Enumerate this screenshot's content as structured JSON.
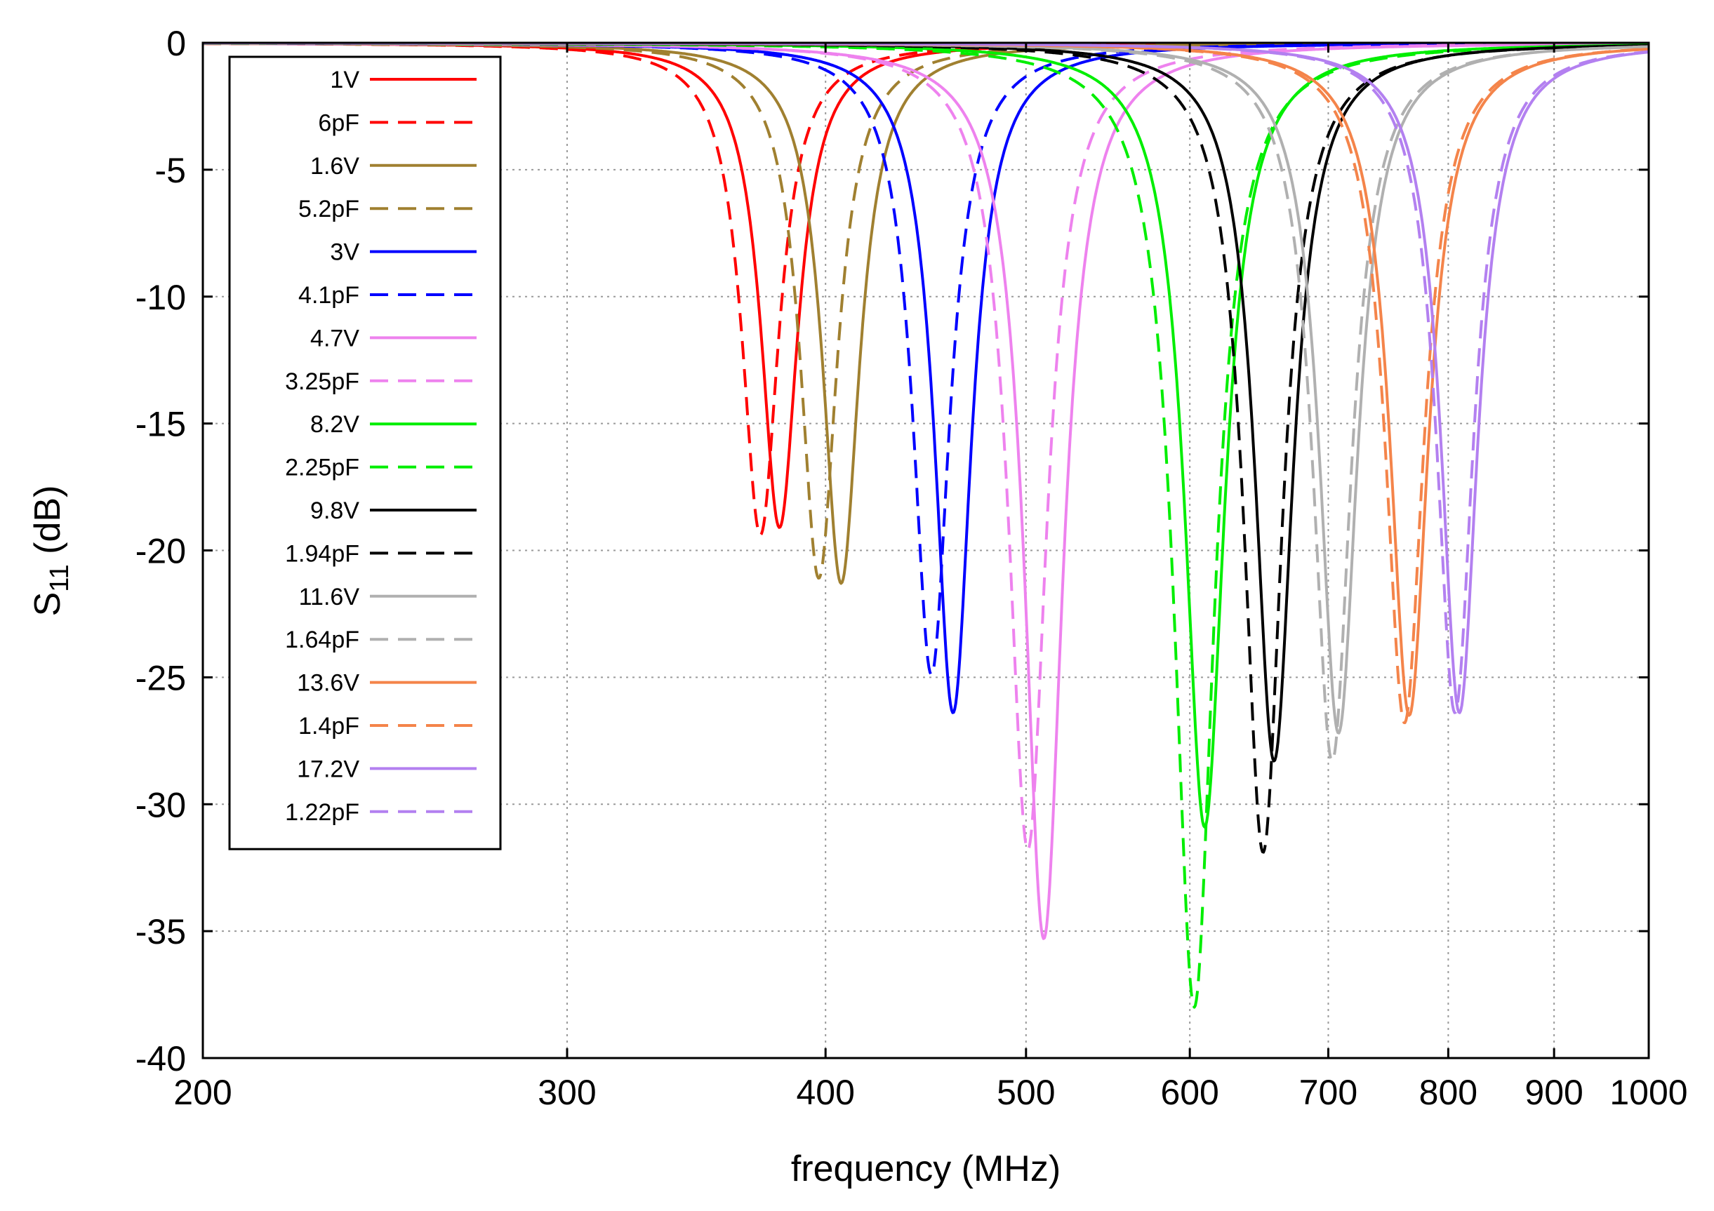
{
  "chart_data": {
    "type": "line",
    "title": "",
    "xlabel": "frequency  (MHz)",
    "ylabel_main": "S",
    "ylabel_sub": "11",
    "ylabel_rest": " (dB)",
    "x_scale": "log",
    "xlim": [
      200,
      1000
    ],
    "ylim": [
      -40,
      0
    ],
    "x_ticks": [
      200,
      300,
      400,
      500,
      600,
      700,
      800,
      900,
      1000
    ],
    "x_tick_labels": [
      "200",
      "300",
      "400",
      "500",
      "600",
      "700",
      "800",
      "900",
      "1000"
    ],
    "y_ticks": [
      0,
      -5,
      -10,
      -15,
      -20,
      -25,
      -30,
      -35,
      -40
    ],
    "y_tick_labels": [
      "0",
      "-5",
      "-10",
      "-15",
      "-20",
      "-25",
      "-30",
      "-35",
      "-40"
    ],
    "grid": true,
    "legend_position": "top-left",
    "series": [
      {
        "name": "1V",
        "style": "solid",
        "color": "#ff0000",
        "f0": 380,
        "min_db": -19.1,
        "width": 0.025
      },
      {
        "name": "6pF",
        "style": "dashed",
        "color": "#ff0000",
        "f0": 372,
        "min_db": -19.4,
        "width": 0.025
      },
      {
        "name": "1.6V",
        "style": "solid",
        "color": "#a08030",
        "f0": 407,
        "min_db": -21.3,
        "width": 0.025
      },
      {
        "name": "5.2pF",
        "style": "dashed",
        "color": "#a08030",
        "f0": 397,
        "min_db": -21.1,
        "width": 0.025
      },
      {
        "name": "3V",
        "style": "solid",
        "color": "#0000ff",
        "f0": 461,
        "min_db": -26.4,
        "width": 0.025
      },
      {
        "name": "4.1pF",
        "style": "dashed",
        "color": "#0000ff",
        "f0": 450,
        "min_db": -24.9,
        "width": 0.025
      },
      {
        "name": "4.7V",
        "style": "solid",
        "color": "#ee82ee",
        "f0": 510,
        "min_db": -35.3,
        "width": 0.026
      },
      {
        "name": "3.25pF",
        "style": "dashed",
        "color": "#ee82ee",
        "f0": 501,
        "min_db": -31.8,
        "width": 0.026
      },
      {
        "name": "8.2V",
        "style": "solid",
        "color": "#00ee00",
        "f0": 610,
        "min_db": -30.9,
        "width": 0.027
      },
      {
        "name": "2.25pF",
        "style": "dashed",
        "color": "#00ee00",
        "f0": 603,
        "min_db": -38.0,
        "width": 0.027
      },
      {
        "name": "9.8V",
        "style": "solid",
        "color": "#000000",
        "f0": 659,
        "min_db": -28.3,
        "width": 0.026
      },
      {
        "name": "1.94pF",
        "style": "dashed",
        "color": "#000000",
        "f0": 651,
        "min_db": -31.9,
        "width": 0.026
      },
      {
        "name": "11.6V",
        "style": "solid",
        "color": "#b0b0b0",
        "f0": 708,
        "min_db": -27.2,
        "width": 0.026
      },
      {
        "name": "1.64pF",
        "style": "dashed",
        "color": "#b0b0b0",
        "f0": 703,
        "min_db": -28.3,
        "width": 0.026
      },
      {
        "name": "13.6V",
        "style": "solid",
        "color": "#f4844a",
        "f0": 766,
        "min_db": -26.5,
        "width": 0.026
      },
      {
        "name": "1.4pF",
        "style": "dashed",
        "color": "#f4844a",
        "f0": 762,
        "min_db": -26.8,
        "width": 0.026
      },
      {
        "name": "17.2V",
        "style": "solid",
        "color": "#b380f0",
        "f0": 810,
        "min_db": -26.4,
        "width": 0.025
      },
      {
        "name": "1.22pF",
        "style": "dashed",
        "color": "#b380f0",
        "f0": 806,
        "min_db": -26.4,
        "width": 0.025
      }
    ]
  }
}
